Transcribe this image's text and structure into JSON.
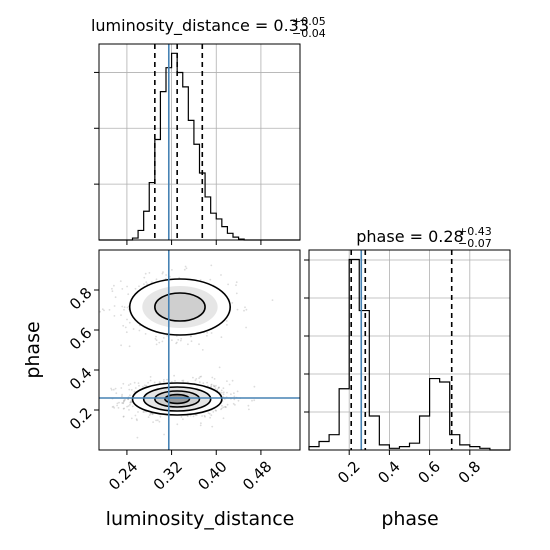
{
  "chart_data": {
    "type": "corner",
    "parameters": [
      "luminosity_distance",
      "phase"
    ],
    "truth": {
      "luminosity_distance": 0.315,
      "phase": 0.26
    },
    "panels": [
      {
        "id": "luminosity_distance_hist",
        "type": "histogram",
        "title": {
          "label": "luminosity_distance = 0.33",
          "sup": "+0.05",
          "sub": "−0.04"
        },
        "xlim": [
          0.19,
          0.55
        ],
        "quantiles": [
          0.29,
          0.33,
          0.375
        ],
        "truth": 0.315,
        "bin_edges": [
          0.19,
          0.2,
          0.21,
          0.22,
          0.23,
          0.24,
          0.25,
          0.26,
          0.27,
          0.28,
          0.29,
          0.3,
          0.31,
          0.32,
          0.33,
          0.34,
          0.35,
          0.36,
          0.37,
          0.38,
          0.39,
          0.4,
          0.41,
          0.42,
          0.43,
          0.44,
          0.45,
          0.46,
          0.47,
          0.48,
          0.49,
          0.5,
          0.51,
          0.52,
          0.53,
          0.54,
          0.55
        ],
        "counts": [
          0,
          0,
          0,
          0,
          0,
          0,
          2,
          10,
          30,
          60,
          105,
          155,
          180,
          195,
          175,
          160,
          125,
          100,
          70,
          45,
          28,
          22,
          14,
          7,
          3,
          1,
          0,
          0,
          0,
          0,
          0,
          0,
          0,
          0,
          0,
          0
        ]
      },
      {
        "id": "phase_hist",
        "type": "histogram",
        "title": {
          "label": "phase = 0.28",
          "sup": "+0.43",
          "sub": "−0.07"
        },
        "xlim": [
          0.0,
          1.0
        ],
        "xticks": [
          "0.2",
          "0.4",
          "0.6",
          "0.8"
        ],
        "xlabel": "phase",
        "quantiles": [
          0.21,
          0.28,
          0.71
        ],
        "truth": 0.26,
        "bin_edges": [
          0.0,
          0.05,
          0.1,
          0.15,
          0.2,
          0.25,
          0.3,
          0.35,
          0.4,
          0.45,
          0.5,
          0.55,
          0.6,
          0.65,
          0.7,
          0.75,
          0.8,
          0.85,
          0.9,
          0.95,
          1.0
        ],
        "counts": [
          2,
          5,
          9,
          36,
          112,
          82,
          20,
          3,
          1,
          2,
          4,
          20,
          42,
          40,
          9,
          3,
          2,
          1,
          0,
          0
        ]
      },
      {
        "id": "luminosity_distance_vs_phase",
        "type": "2d-density",
        "xlim": [
          0.19,
          0.55
        ],
        "ylim": [
          0.0,
          1.0
        ],
        "xticks": [
          "0.24",
          "0.32",
          "0.40",
          "0.48"
        ],
        "yticks": [
          "0.2",
          "0.4",
          "0.6",
          "0.8"
        ],
        "xlabel": "luminosity_distance",
        "ylabel": "phase",
        "modes": [
          {
            "x": 0.33,
            "y": 0.255,
            "sx": 0.04,
            "sy": 0.04,
            "weight": 0.65
          },
          {
            "x": 0.335,
            "y": 0.715,
            "sx": 0.045,
            "sy": 0.07,
            "weight": 0.35
          }
        ]
      }
    ]
  }
}
